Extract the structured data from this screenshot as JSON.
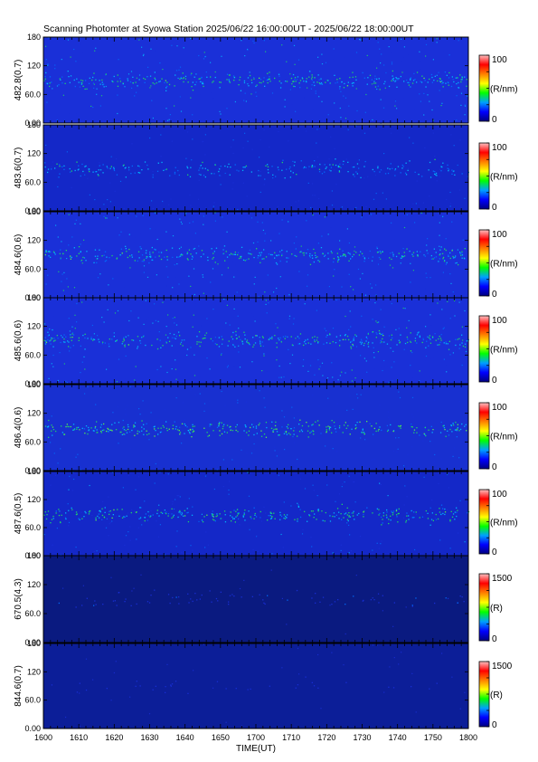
{
  "title": "Scanning Photomter at Syowa Station  2025/06/22 16:00:00UT - 2025/06/22 18:00:00UT",
  "colors": {
    "cmap": [
      "#000080",
      "#0000ff",
      "#00a0ff",
      "#00ff00",
      "#ffff00",
      "#ff8000",
      "#ff0000",
      "#ffc0c0"
    ]
  },
  "chart_data": [
    {
      "type": "heatmap",
      "ylabel": "482.8(0.7)",
      "yticks": [
        "0.00",
        "60.0",
        "120",
        "180"
      ],
      "ylim": [
        0,
        180
      ],
      "colorbar": {
        "label": "(R/nm)",
        "min": "0",
        "max": "100"
      },
      "background": "#1a30d8",
      "band": {
        "center_deg": 90,
        "level": 0.45
      },
      "noise": 0.35
    },
    {
      "type": "heatmap",
      "ylabel": "483.6(0.7)",
      "yticks": [
        "0.00",
        "60.0",
        "120",
        "180"
      ],
      "ylim": [
        0,
        180
      ],
      "colorbar": {
        "label": "(R/nm)",
        "min": "0",
        "max": "100"
      },
      "background": "#1428c8",
      "band": {
        "center_deg": 88,
        "level": 0.35
      },
      "noise": 0.18
    },
    {
      "type": "heatmap",
      "ylabel": "484.6(0.6)",
      "yticks": [
        "0.00",
        "60.0",
        "120",
        "180"
      ],
      "ylim": [
        0,
        180
      ],
      "colorbar": {
        "label": "(R/nm)",
        "min": "0",
        "max": "100"
      },
      "background": "#1a30d8",
      "band": {
        "center_deg": 90,
        "level": 0.45
      },
      "noise": 0.35
    },
    {
      "type": "heatmap",
      "ylabel": "485.6(0.6)",
      "yticks": [
        "0.00",
        "60.0",
        "120",
        "180"
      ],
      "ylim": [
        0,
        180
      ],
      "colorbar": {
        "label": "(R/nm)",
        "min": "0",
        "max": "100"
      },
      "background": "#1a30d8",
      "band": {
        "center_deg": 92,
        "level": 0.45
      },
      "noise": 0.38
    },
    {
      "type": "heatmap",
      "ylabel": "486.4(0.6)",
      "yticks": [
        "0.00",
        "60.0",
        "120",
        "180"
      ],
      "ylim": [
        0,
        180
      ],
      "colorbar": {
        "label": "(R/nm)",
        "min": "0",
        "max": "100"
      },
      "background": "#1830d0",
      "band": {
        "center_deg": 88,
        "level": 0.5
      },
      "noise": 0.2
    },
    {
      "type": "heatmap",
      "ylabel": "487.6(0.5)",
      "yticks": [
        "0.00",
        "60.0",
        "120",
        "180"
      ],
      "ylim": [
        0,
        180
      ],
      "colorbar": {
        "label": "(R/nm)",
        "min": "0",
        "max": "100"
      },
      "background": "#1428c8",
      "band": {
        "center_deg": 88,
        "level": 0.45
      },
      "noise": 0.22
    },
    {
      "type": "heatmap",
      "ylabel": "670.5(4.3)",
      "yticks": [
        "0.00",
        "60.0",
        "120",
        "180"
      ],
      "ylim": [
        0,
        180
      ],
      "colorbar": {
        "label": "(R)",
        "min": "0",
        "max": "1500"
      },
      "background": "#0a1a80",
      "band": {
        "center_deg": 90,
        "level": 0.12
      },
      "noise": 0.02
    },
    {
      "type": "heatmap",
      "ylabel": "844.6(0.7)",
      "yticks": [
        "0.00",
        "60.0",
        "120",
        "180"
      ],
      "ylim": [
        0,
        180
      ],
      "colorbar": {
        "label": "(R)",
        "min": "0",
        "max": "1500"
      },
      "background": "#0c1e98",
      "band": {
        "center_deg": 90,
        "level": 0.05
      },
      "noise": 0.04
    }
  ],
  "xaxis": {
    "label": "TIME(UT)",
    "ticks": [
      "1600",
      "1610",
      "1620",
      "1630",
      "1640",
      "1650",
      "1700",
      "1710",
      "1720",
      "1730",
      "1740",
      "1750",
      "1800"
    ]
  }
}
